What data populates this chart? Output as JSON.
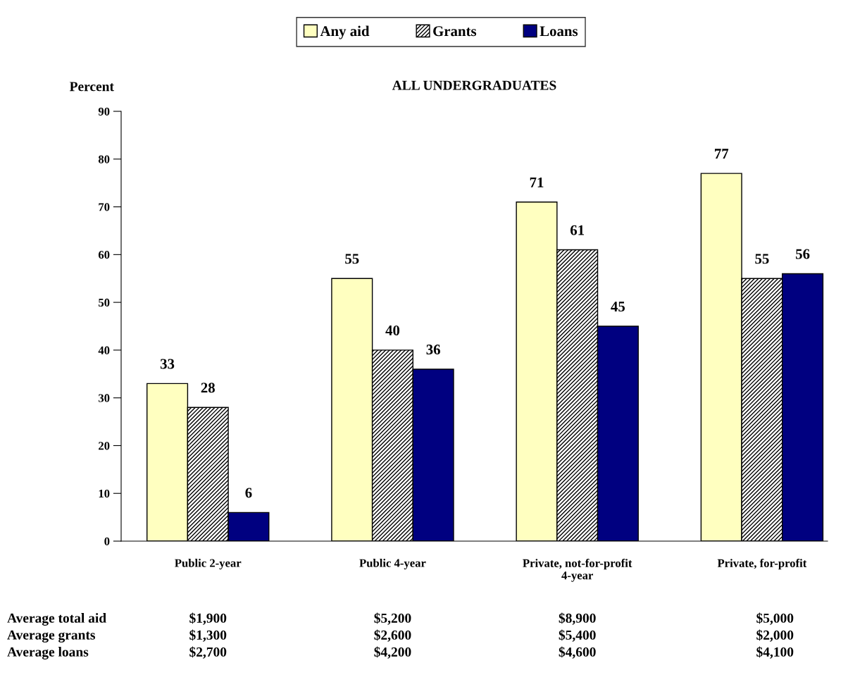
{
  "chart_data": {
    "type": "bar",
    "title": "ALL UNDERGRADUATES",
    "ylabel": "Percent",
    "categories": [
      "Public 2-year",
      "Public 4-year",
      "Private, not-for-profit\n4-year",
      "Private, for-profit"
    ],
    "series": [
      {
        "name": "Any aid",
        "color": "#ffffc0",
        "values": [
          33,
          55,
          71,
          77
        ]
      },
      {
        "name": "Grants",
        "color": "#000000",
        "values": [
          28,
          40,
          61,
          55
        ]
      },
      {
        "name": "Loans",
        "color": "#000080",
        "values": [
          6,
          36,
          45,
          56
        ]
      }
    ],
    "ylim": [
      0,
      90
    ],
    "yticks": [
      0,
      10,
      20,
      30,
      40,
      50,
      60,
      70,
      80,
      90
    ],
    "data_labels": true,
    "legend": "top",
    "grid": false,
    "annotations": [
      "Average total aid",
      "$1,900",
      "$5,200",
      "$8,900",
      "$5,000",
      "Average grants",
      "$1,300",
      "$2,600",
      "$5,400",
      "$2,000",
      "Average loans",
      "$2,700",
      "$4,200",
      "$4,600",
      "$4,100"
    ]
  }
}
